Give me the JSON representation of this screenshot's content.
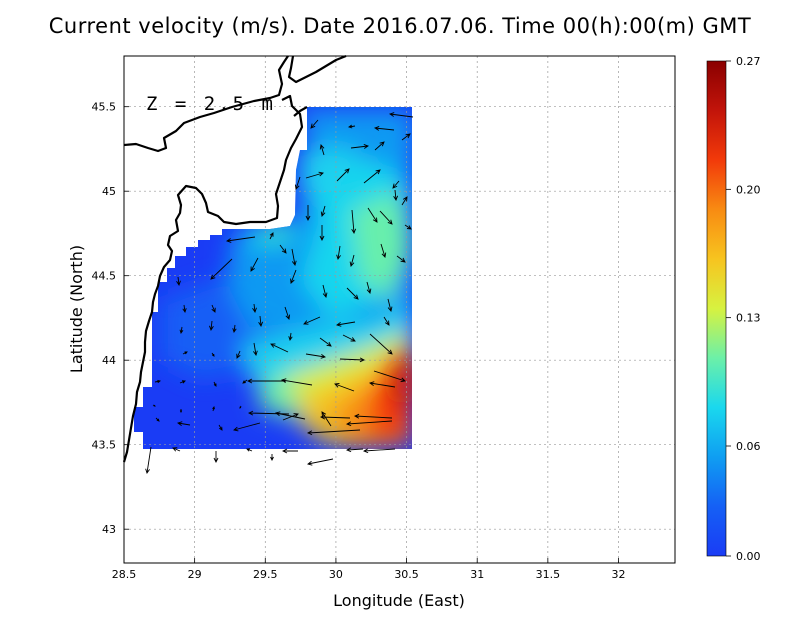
{
  "title": "Current velocity (m/s). Date 2016.07.06. Time 00(h):00(m) GMT",
  "depth_label": "Z = 2.5 m",
  "x_axis": {
    "label": "Longitude (East)",
    "range": [
      28.5,
      32.4
    ],
    "ticks": [
      28.5,
      29,
      29.5,
      30,
      30.5,
      31,
      31.5,
      32
    ],
    "tick_labels": [
      "28.5",
      "29",
      "29.5",
      "30",
      "30.5",
      "31",
      "31.5",
      "32"
    ]
  },
  "y_axis": {
    "label": "Latitude (North)",
    "range": [
      42.8,
      45.8
    ],
    "ticks": [
      43,
      43.5,
      44,
      44.5,
      45,
      45.5
    ],
    "tick_labels": [
      "43",
      "43.5",
      "44",
      "44.5",
      "45",
      "45.5"
    ]
  },
  "colorbar": {
    "min": 0.0,
    "max": 0.27,
    "tick_values": [
      0.0,
      0.06,
      0.13,
      0.2,
      0.27
    ],
    "tick_labels": [
      "0.00",
      "0.06",
      "0.13",
      "0.20",
      "0.27"
    ],
    "colors": [
      "#1a3cf5",
      "#1560f5",
      "#0f9ef2",
      "#1ad8ee",
      "#6cf0a8",
      "#d7f240",
      "#f7c41f",
      "#f88b12",
      "#f23a0a",
      "#c2140a",
      "#8a0000"
    ]
  },
  "grid": true,
  "colors": {
    "coast": "#000000",
    "grid": "#9a9a9a"
  }
}
